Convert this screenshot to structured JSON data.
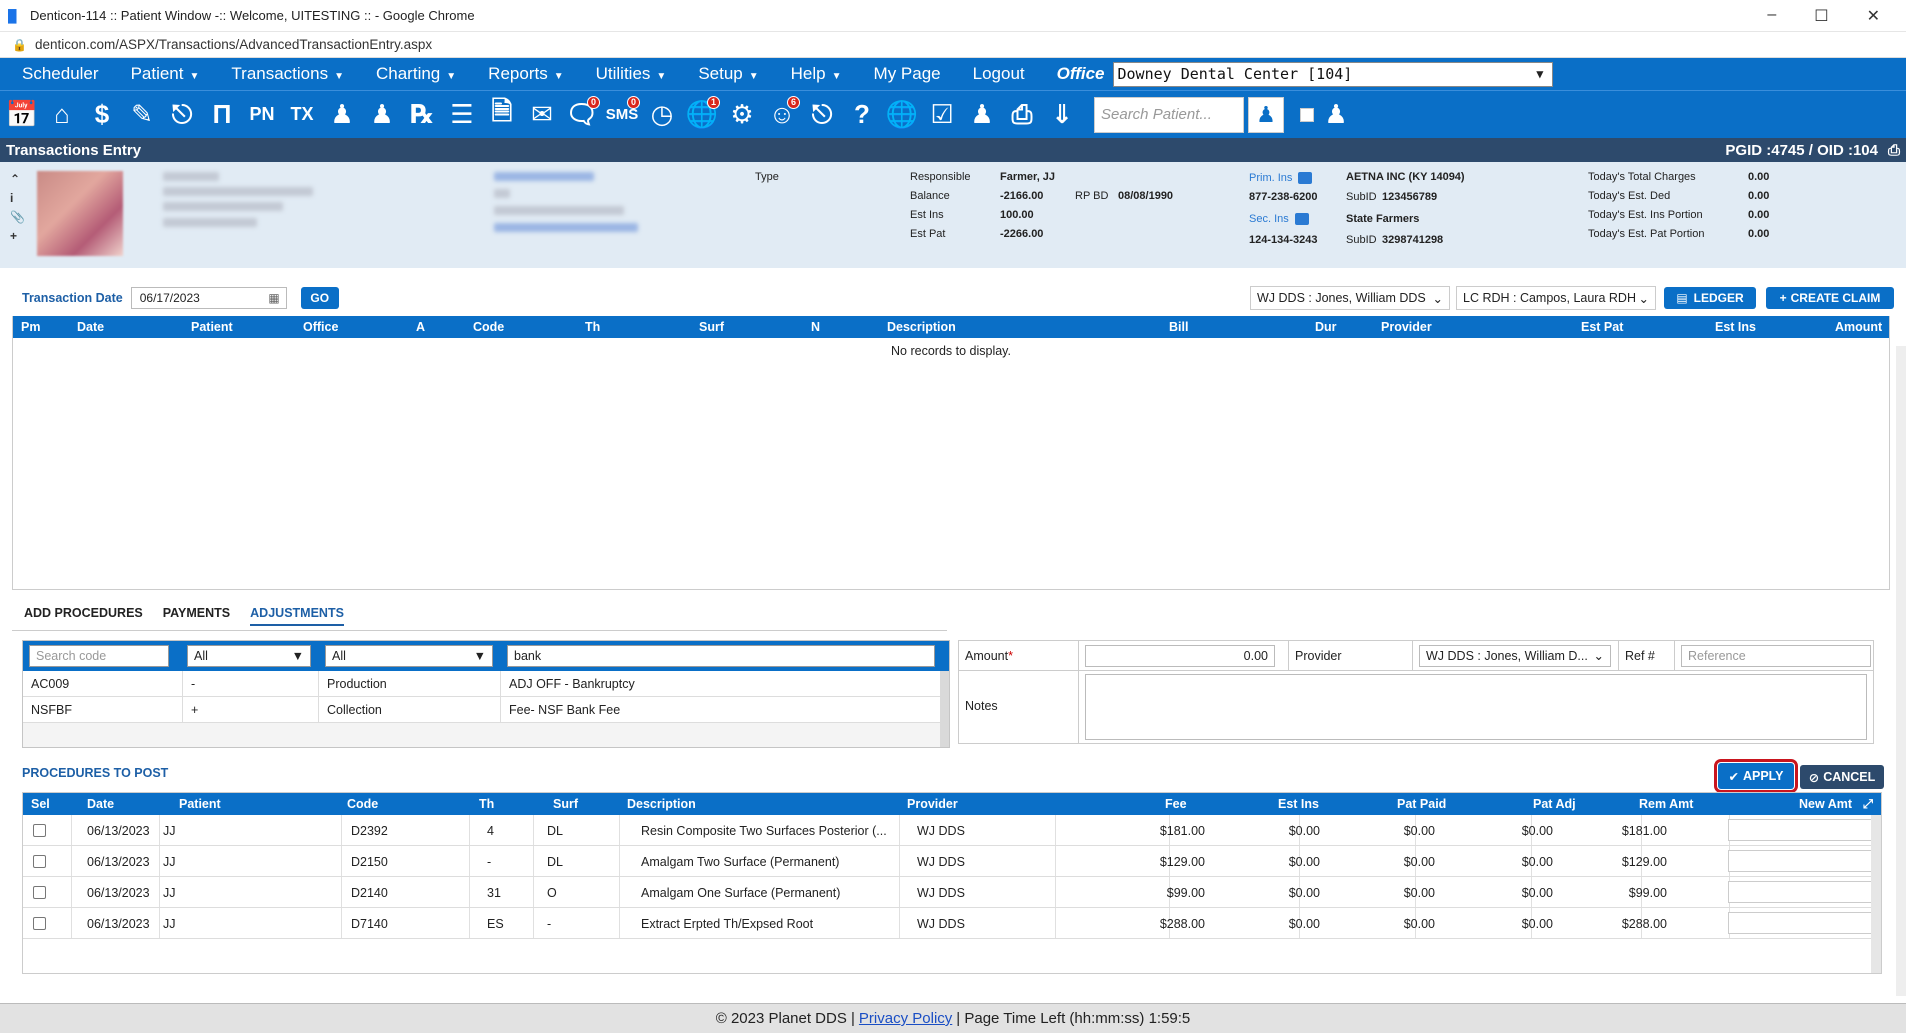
{
  "window": {
    "title": "Denticon-114 :: Patient Window -:: Welcome, UITESTING :: - Google Chrome",
    "url": "denticon.com/ASPX/Transactions/AdvancedTransactionEntry.aspx"
  },
  "menu": {
    "items": [
      "Scheduler",
      "Patient",
      "Transactions",
      "Charting",
      "Reports",
      "Utilities",
      "Setup",
      "Help",
      "My Page",
      "Logout"
    ],
    "office_label": "Office",
    "office_value": "Downey Dental Center [104]"
  },
  "toolbar": {
    "search_placeholder": "Search Patient...",
    "badges": {
      "notes": "0",
      "sms": "0",
      "global": "1",
      "forms": "6"
    }
  },
  "section": {
    "title": "Transactions Entry",
    "ids": "PGID :4745  /  OID :104"
  },
  "banner": {
    "type_label": "Type",
    "responsible_label": "Responsible",
    "responsible_value": "Farmer, JJ",
    "balance_label": "Balance",
    "balance_value": "-2166.00",
    "rpbd_label": "RP BD",
    "rpbd_value": "08/08/1990",
    "estins_label": "Est Ins",
    "estins_value": "100.00",
    "estpat_label": "Est Pat",
    "estpat_value": "-2266.00",
    "prim_ins_label": "Prim. Ins",
    "prim_ins_value": "AETNA INC (KY 14094)",
    "prim_phone": "877-238-6200",
    "prim_subid_label": "SubID",
    "prim_subid": "123456789",
    "sec_ins_label": "Sec. Ins",
    "sec_ins_value": "State Farmers",
    "sec_phone": "124-134-3243",
    "sec_subid_label": "SubID",
    "sec_subid": "3298741298",
    "today_charges_label": "Today's Total Charges",
    "today_charges": "0.00",
    "today_ded_label": "Today's Est. Ded",
    "today_ded": "0.00",
    "today_ins_label": "Today's Est. Ins Portion",
    "today_ins": "0.00",
    "today_pat_label": "Today's Est. Pat Portion",
    "today_pat": "0.00"
  },
  "txdate": {
    "label": "Transaction Date",
    "value": "06/17/2023",
    "go": "GO",
    "provider1": "WJ DDS : Jones, William DDS",
    "provider2": "LC RDH : Campos, Laura RDH",
    "ledger": "LEDGER",
    "create_claim": "CREATE CLAIM"
  },
  "top_grid": {
    "headers": [
      "Pm",
      "Date",
      "Patient",
      "Office",
      "A",
      "Code",
      "Th",
      "Surf",
      "N",
      "Description",
      "Bill",
      "Dur",
      "Provider",
      "Est Pat",
      "Est Ins",
      "Amount"
    ],
    "empty_text": "No records to display."
  },
  "tabs": [
    "ADD PROCEDURES",
    "PAYMENTS",
    "ADJUSTMENTS"
  ],
  "code_search": {
    "search_placeholder": "Search code",
    "filter1": "All",
    "filter2": "All",
    "keyword": "bank",
    "rows": [
      {
        "code": "AC009",
        "sign": "-",
        "type": "Production",
        "desc": "ADJ OFF - Bankruptcy"
      },
      {
        "code": "NSFBF",
        "sign": "+",
        "type": "Collection",
        "desc": "Fee- NSF Bank Fee"
      }
    ]
  },
  "amount_panel": {
    "amount_label": "Amount",
    "amount_value": "0.00",
    "provider_label": "Provider",
    "provider_value": "WJ DDS : Jones, William D...",
    "ref_label": "Ref #",
    "ref_placeholder": "Reference",
    "notes_label": "Notes"
  },
  "procedures": {
    "title": "PROCEDURES TO POST",
    "apply": "APPLY",
    "cancel": "CANCEL",
    "headers": [
      "Sel",
      "Date",
      "Patient",
      "Code",
      "Th",
      "Surf",
      "Description",
      "Provider",
      "Fee",
      "Est Ins",
      "Pat Paid",
      "Pat Adj",
      "Rem Amt",
      "New Amt"
    ],
    "rows": [
      {
        "date": "06/13/2023",
        "patient": "JJ",
        "code": "D2392",
        "th": "4",
        "surf": "DL",
        "desc": "Resin Composite Two Surfaces Posterior (...",
        "provider": "WJ DDS",
        "fee": "$181.00",
        "estins": "$0.00",
        "patpaid": "$0.00",
        "patadj": "$0.00",
        "rem": "$181.00"
      },
      {
        "date": "06/13/2023",
        "patient": "JJ",
        "code": "D2150",
        "th": "-",
        "surf": "DL",
        "desc": "Amalgam Two Surface (Permanent)",
        "provider": "WJ DDS",
        "fee": "$129.00",
        "estins": "$0.00",
        "patpaid": "$0.00",
        "patadj": "$0.00",
        "rem": "$129.00"
      },
      {
        "date": "06/13/2023",
        "patient": "JJ",
        "code": "D2140",
        "th": "31",
        "surf": "O",
        "desc": "Amalgam One Surface (Permanent)",
        "provider": "WJ DDS",
        "fee": "$99.00",
        "estins": "$0.00",
        "patpaid": "$0.00",
        "patadj": "$0.00",
        "rem": "$99.00"
      },
      {
        "date": "06/13/2023",
        "patient": "JJ",
        "code": "D7140",
        "th": "ES",
        "surf": "-",
        "desc": "Extract Erpted Th/Expsed Root",
        "provider": "WJ DDS",
        "fee": "$288.00",
        "estins": "$0.00",
        "patpaid": "$0.00",
        "patadj": "$0.00",
        "rem": "$288.00"
      }
    ]
  },
  "footer": {
    "copyright": "© 2023 Planet DDS |",
    "privacy": "Privacy Policy",
    "time_left": "| Page Time Left (hh:mm:ss) 1:59:5"
  }
}
